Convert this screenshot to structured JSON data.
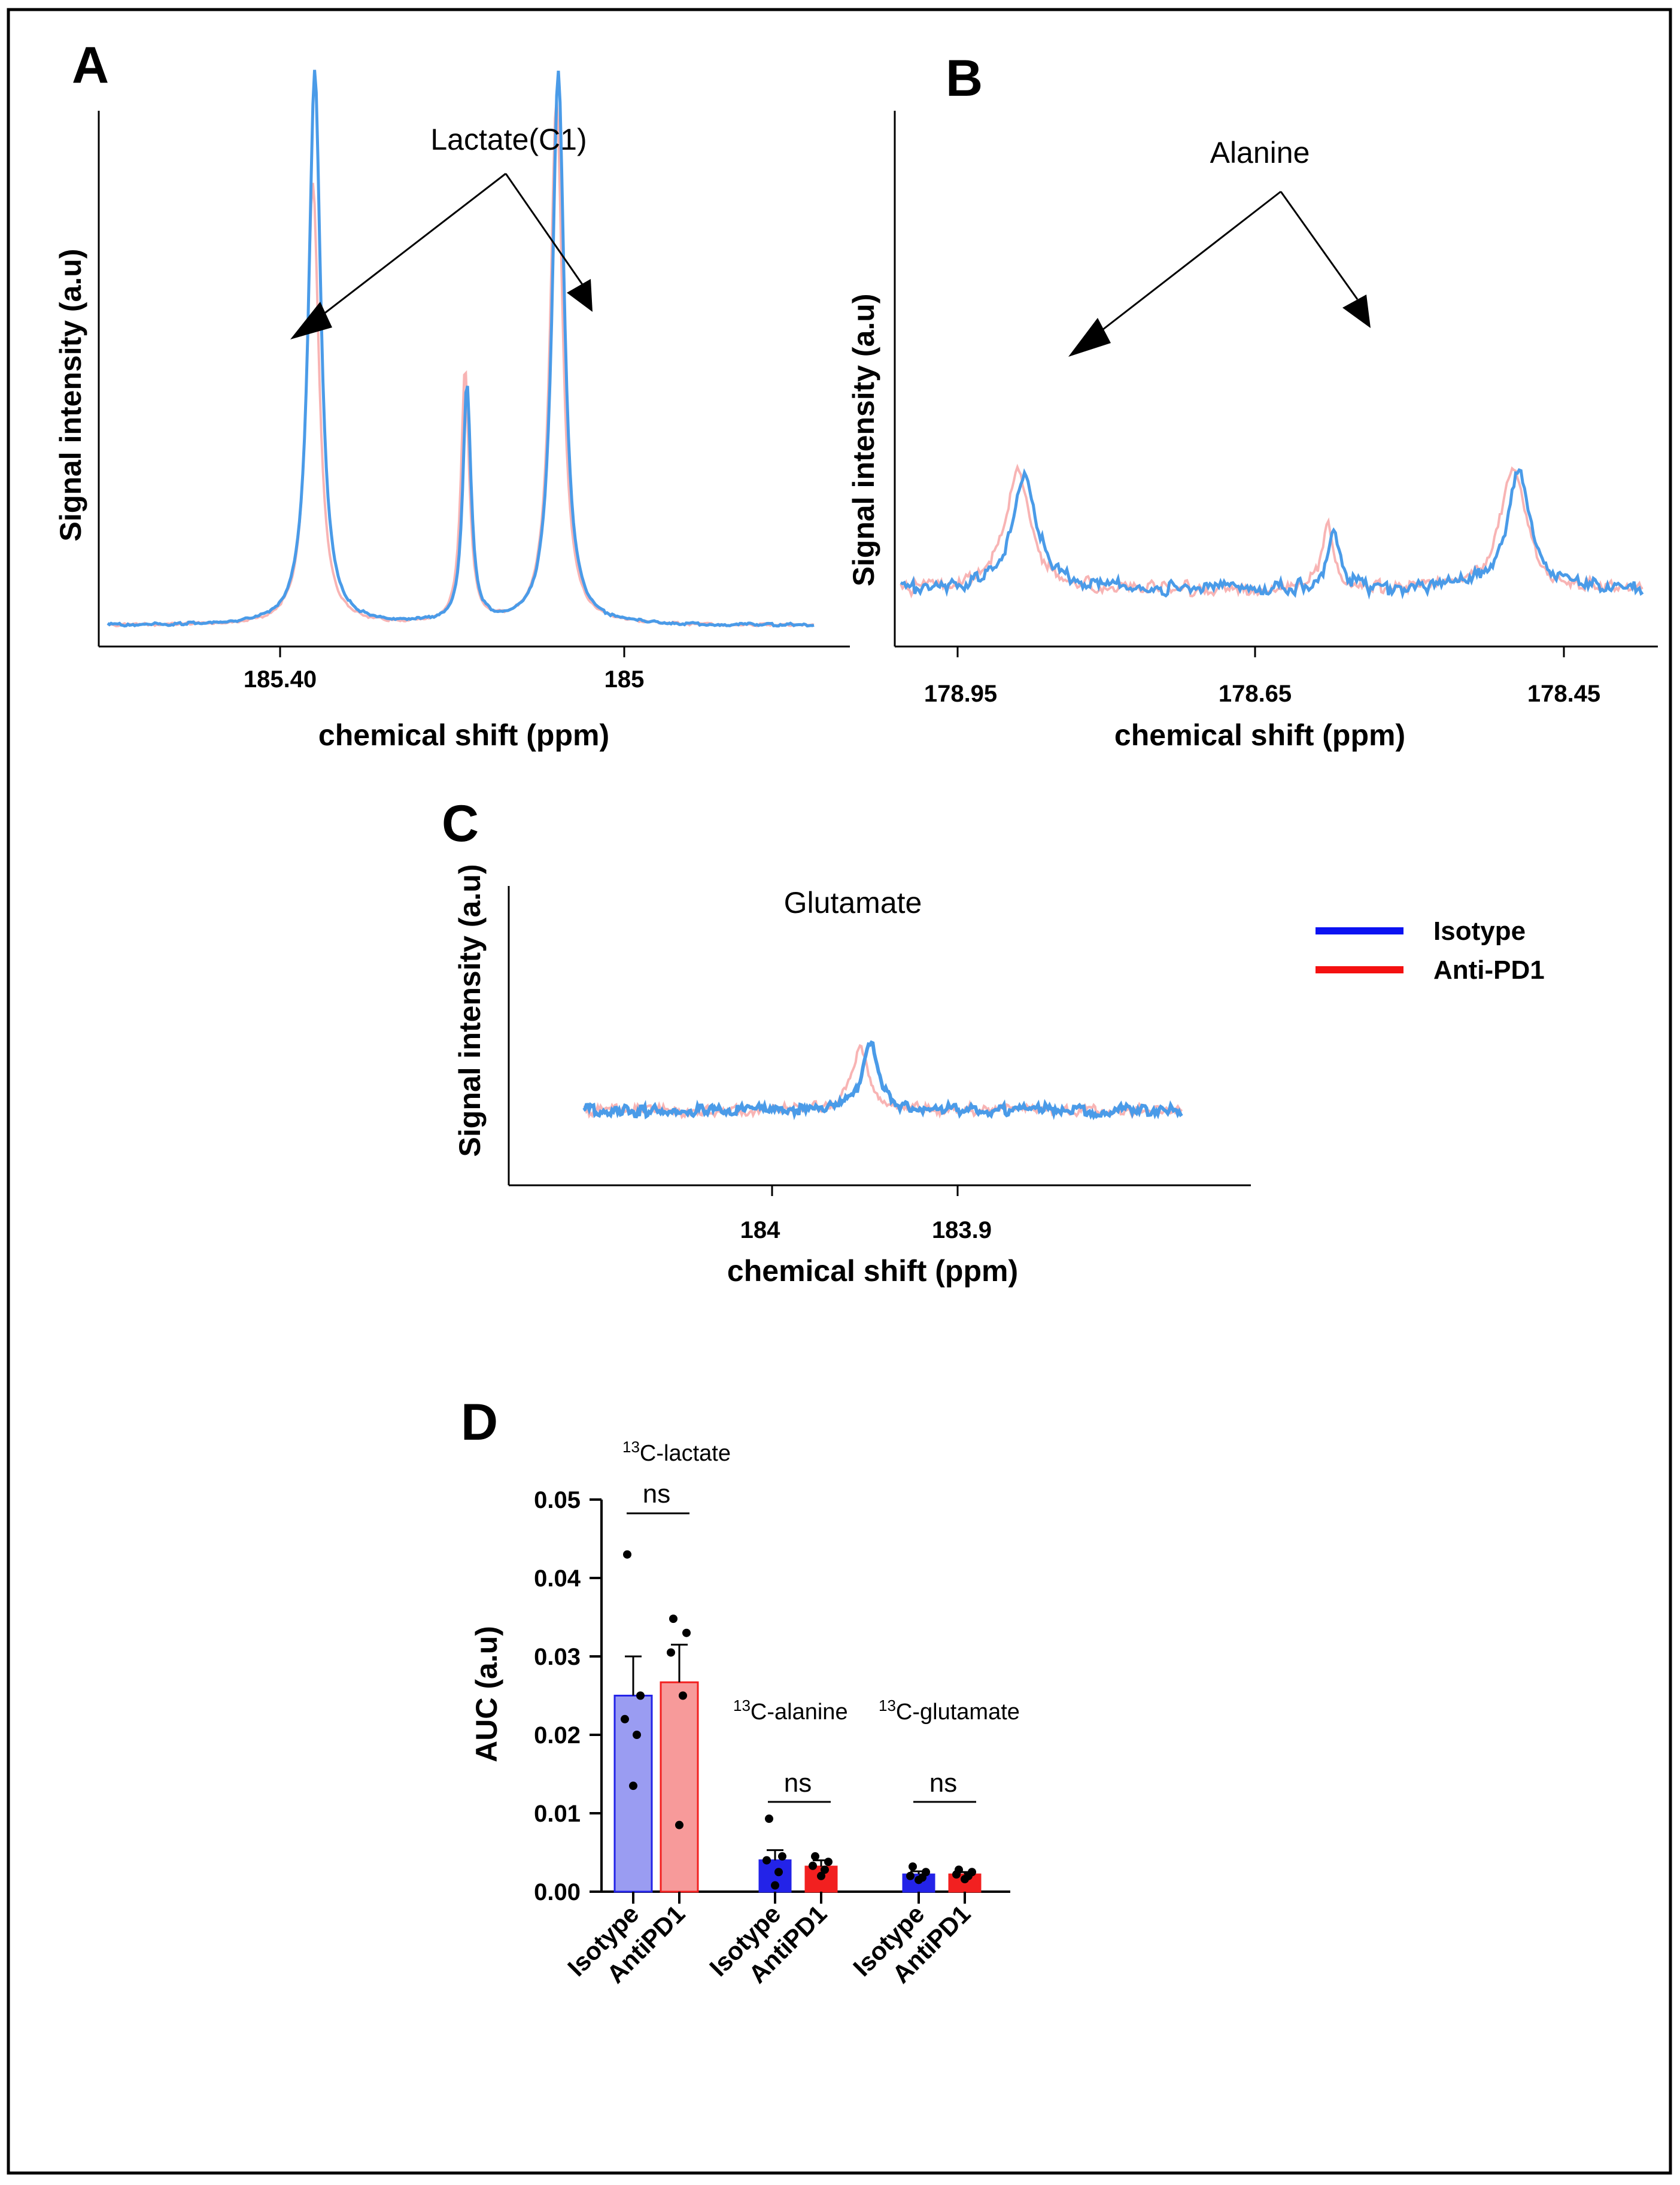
{
  "panel_labels": {
    "a": "A",
    "b": "B",
    "c": "C",
    "d": "D"
  },
  "legend": [
    {
      "label": "Isotype",
      "color": "#0b12f2"
    },
    {
      "label": "Anti-PD1",
      "color": "#f41010"
    }
  ],
  "colors": {
    "spectrum_isotype": "#4a9be8",
    "spectrum_antipd1": "#f7a7a7",
    "bar_isotype_lactate": "#9a9cf2",
    "bar_isotype": "#2323e8",
    "bar_antipd1_lactate": "#f79a9a",
    "bar_antipd1": "#f22020"
  },
  "chart_data": [
    {
      "id": "A",
      "type": "line",
      "ylabel": "Signal intensity (a.u)",
      "xlabel": "chemical shift (ppm)",
      "x_reversed": true,
      "xlim": [
        185.74,
        184.58
      ],
      "xticks": [
        "185.40",
        "185"
      ],
      "ylim": [
        0,
        100
      ],
      "annotation": "Lactate(C1)",
      "series": [
        {
          "name": "Isotype",
          "peaks": [
            {
              "x": 185.4,
              "height": 100,
              "width": 0.012
            },
            {
              "x": 185.15,
              "height": 43,
              "width": 0.008
            },
            {
              "x": 185.0,
              "height": 100,
              "width": 0.012
            }
          ]
        },
        {
          "name": "Anti-PD1",
          "peaks": [
            {
              "x": 185.403,
              "height": 80,
              "width": 0.012
            },
            {
              "x": 185.153,
              "height": 46,
              "width": 0.008
            },
            {
              "x": 185.003,
              "height": 95,
              "width": 0.012
            }
          ]
        }
      ]
    },
    {
      "id": "B",
      "type": "line",
      "ylabel": "Signal intensity (a.u)",
      "xlabel": "chemical shift (ppm)",
      "x_reversed": true,
      "xlim": [
        179.0,
        178.4
      ],
      "xticks": [
        "178.95",
        "178.65",
        "178.45"
      ],
      "ylim": [
        0,
        100
      ],
      "annotation": "Alanine",
      "series": [
        {
          "name": "Isotype",
          "peaks": [
            {
              "x": 178.9,
              "height": 52,
              "width": 0.012
            },
            {
              "x": 178.65,
              "height": 24,
              "width": 0.006
            },
            {
              "x": 178.5,
              "height": 52,
              "width": 0.012
            }
          ]
        },
        {
          "name": "Anti-PD1",
          "peaks": [
            {
              "x": 178.905,
              "height": 54,
              "width": 0.012
            },
            {
              "x": 178.655,
              "height": 28,
              "width": 0.006
            },
            {
              "x": 178.505,
              "height": 55,
              "width": 0.012
            }
          ]
        }
      ]
    },
    {
      "id": "C",
      "type": "line",
      "ylabel": "Signal intensity (a.u)",
      "xlabel": "chemical shift (ppm)",
      "x_reversed": true,
      "xlim": [
        184.145,
        183.745
      ],
      "xticks": [
        "184",
        "183.9"
      ],
      "ylim": [
        0,
        100
      ],
      "annotation": "Glutamate",
      "series": [
        {
          "name": "Isotype",
          "peaks": [
            {
              "x": 183.953,
              "height": 50,
              "width": 0.006
            }
          ]
        },
        {
          "name": "Anti-PD1",
          "peaks": [
            {
              "x": 183.96,
              "height": 45,
              "width": 0.007
            }
          ]
        }
      ]
    },
    {
      "id": "D",
      "type": "bar",
      "ylabel": "AUC (a.u)",
      "ylim": [
        0,
        0.05
      ],
      "yticks": [
        "0.00",
        "0.01",
        "0.02",
        "0.03",
        "0.04",
        "0.05"
      ],
      "categories": [
        "Isotype",
        "AntiPD1",
        "Isotype",
        "AntiPD1",
        "Isotype",
        "AntiPD1"
      ],
      "groups": [
        {
          "label_prefix": "13",
          "label_suffix": "C-lactate",
          "significance": "ns"
        },
        {
          "label_prefix": "13",
          "label_suffix": "C-alanine",
          "significance": "ns"
        },
        {
          "label_prefix": "13",
          "label_suffix": "C-glutamate",
          "significance": "ns"
        }
      ],
      "bars": [
        {
          "group": 0,
          "condition": "Isotype",
          "mean": 0.025,
          "sem": 0.005,
          "points": [
            0.043,
            0.025,
            0.022,
            0.02,
            0.0135
          ]
        },
        {
          "group": 0,
          "condition": "AntiPD1",
          "mean": 0.0267,
          "sem": 0.0048,
          "points": [
            0.0348,
            0.033,
            0.0305,
            0.025,
            0.0085
          ]
        },
        {
          "group": 1,
          "condition": "Isotype",
          "mean": 0.004,
          "sem": 0.0013,
          "points": [
            0.0093,
            0.0045,
            0.004,
            0.0025,
            0.0008
          ]
        },
        {
          "group": 1,
          "condition": "AntiPD1",
          "mean": 0.0032,
          "sem": 0.0008,
          "points": [
            0.0045,
            0.0038,
            0.0033,
            0.0028,
            0.002
          ]
        },
        {
          "group": 2,
          "condition": "Isotype",
          "mean": 0.0022,
          "sem": 0.0004,
          "points": [
            0.0032,
            0.0025,
            0.002,
            0.0018,
            0.0015
          ]
        },
        {
          "group": 2,
          "condition": "AntiPD1",
          "mean": 0.0022,
          "sem": 0.0003,
          "points": [
            0.0028,
            0.0025,
            0.0022,
            0.002,
            0.0016
          ]
        }
      ]
    }
  ]
}
